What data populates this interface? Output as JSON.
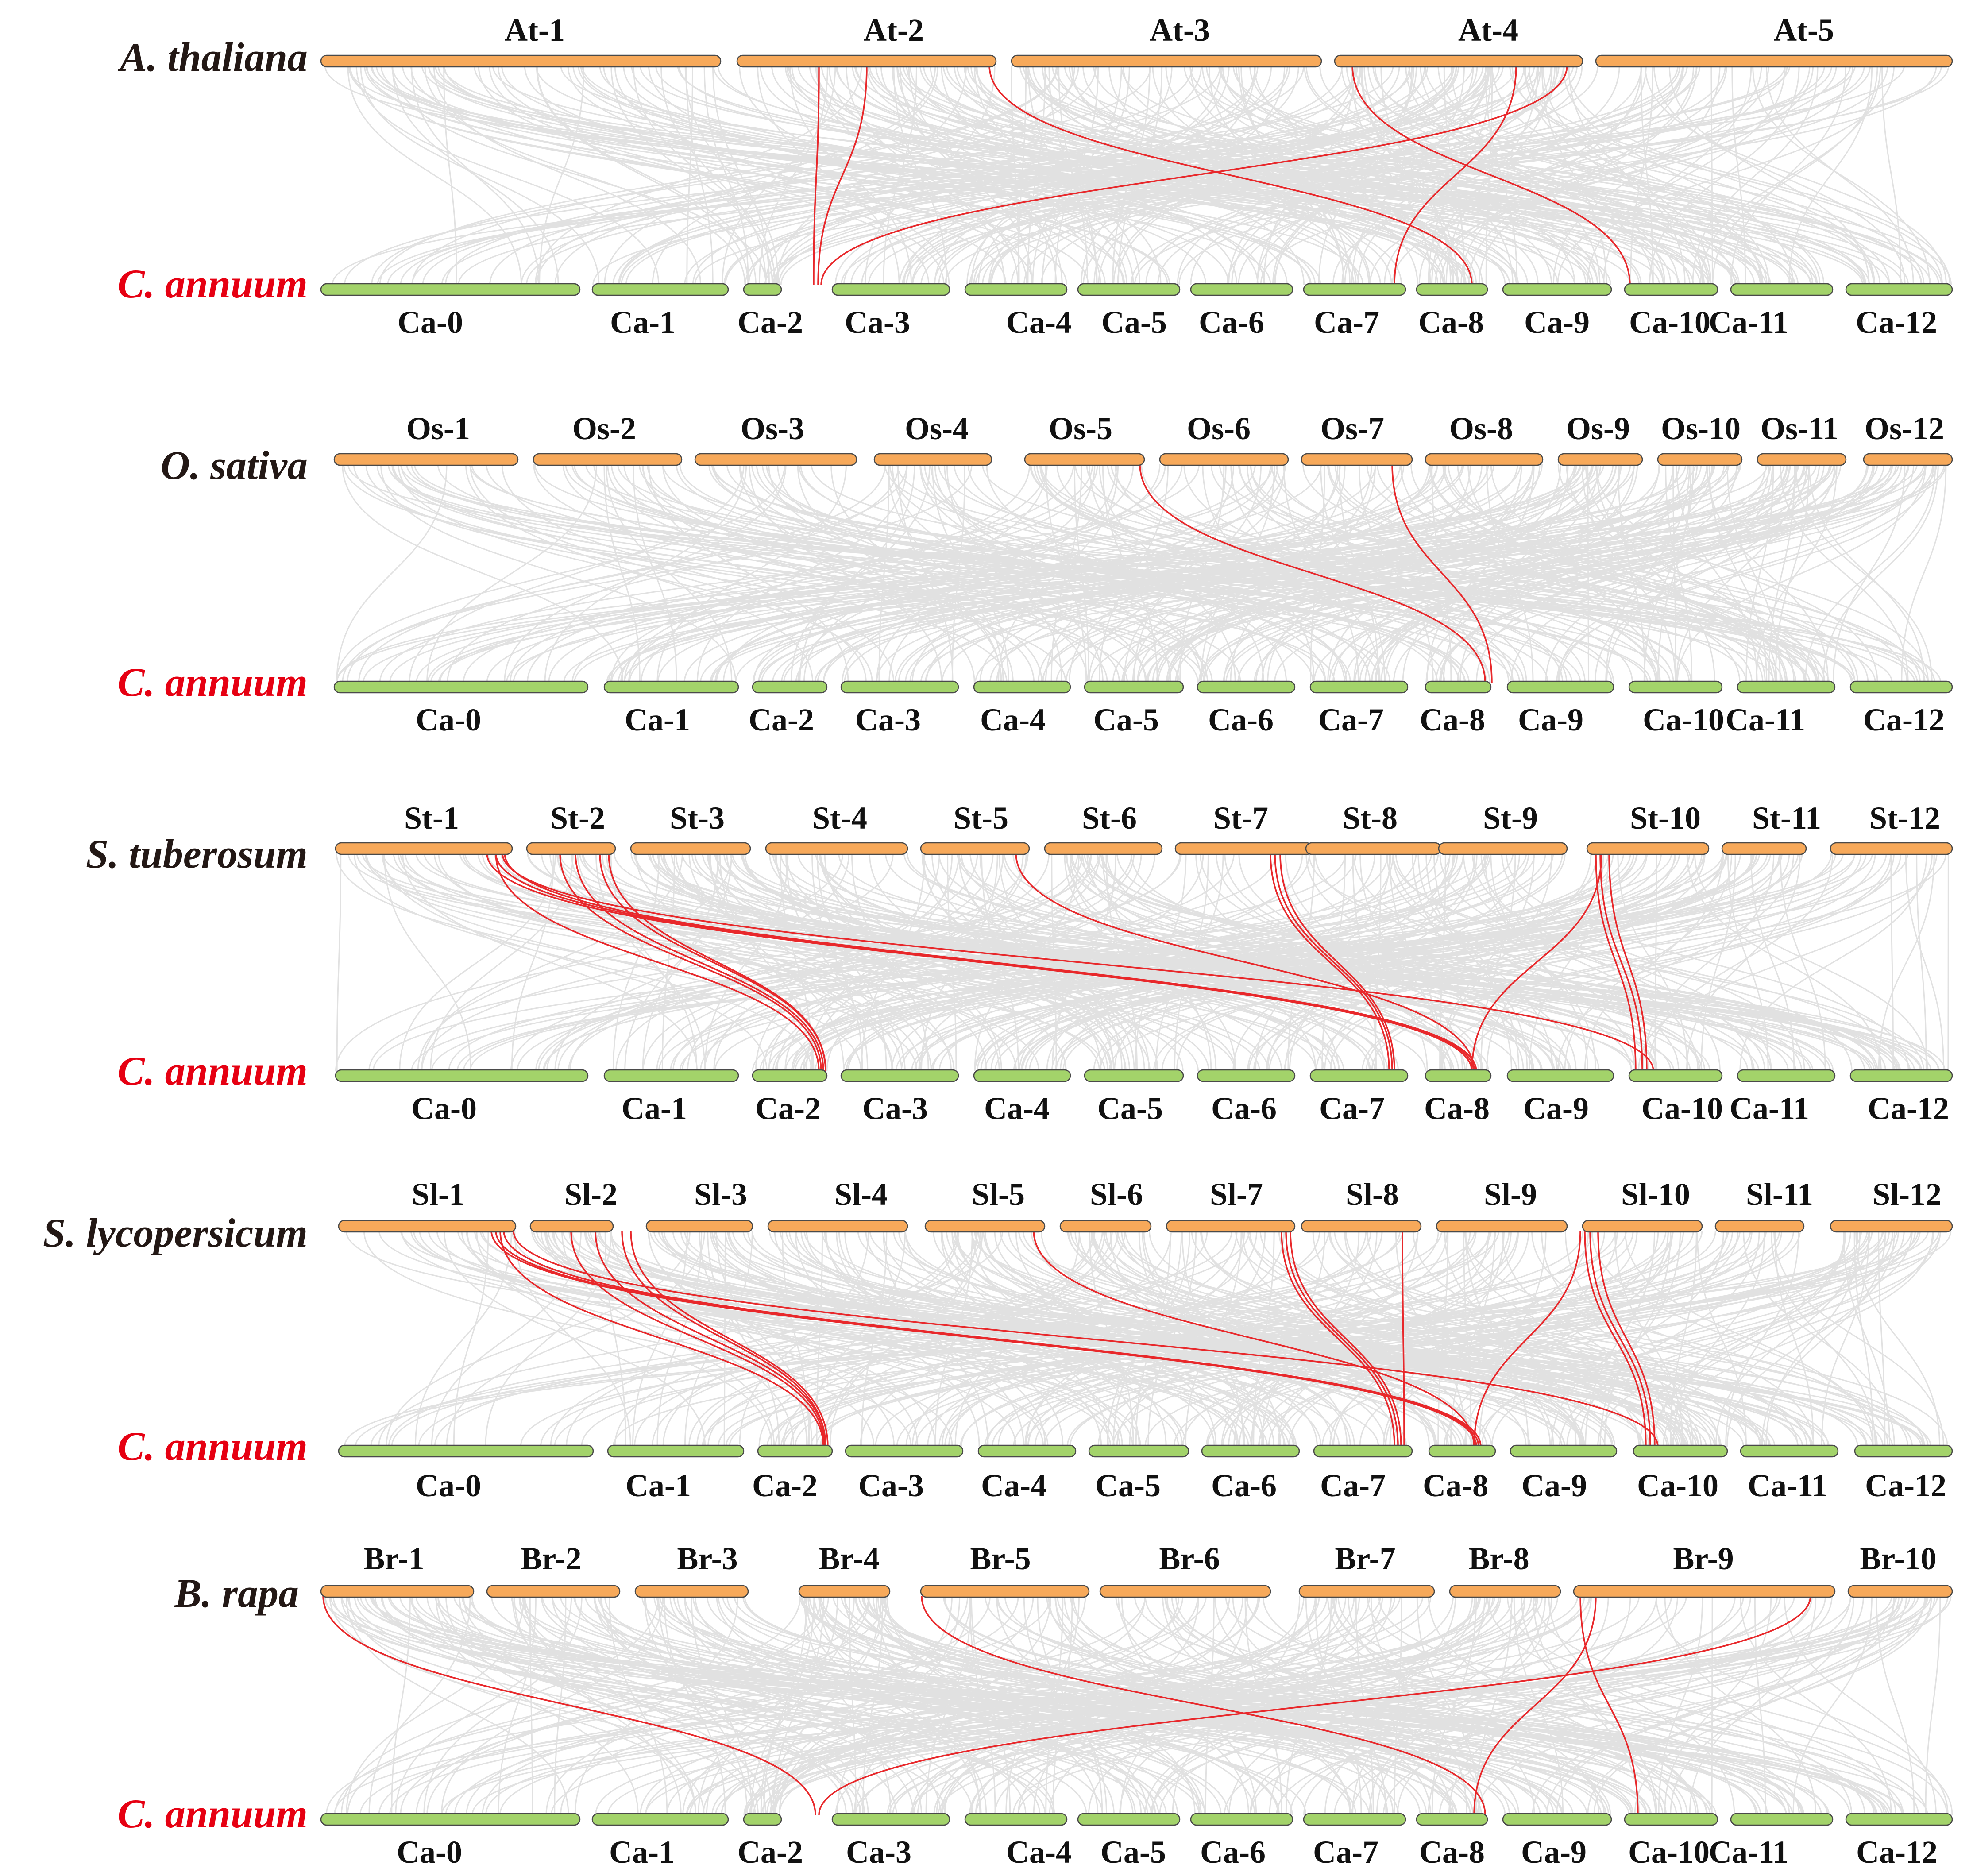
{
  "colors": {
    "reference_species_text": "#231815",
    "pepper_species_text": "#e60012",
    "reference_chrom_fill": "#f7a95a",
    "pepper_chrom_fill": "#a3d36a",
    "chrom_stroke": "#4a4a4a",
    "background_link": "#d9d9d9",
    "highlight_link": "#e8282b"
  },
  "panels": [
    {
      "species": "A.  thaliana",
      "target_species": "C.  annuum",
      "top_chromosomes": [
        "At-1",
        "At-2",
        "At-3",
        "At-4",
        "At-5"
      ],
      "bottom_chromosomes": [
        "Ca-0",
        "Ca-1",
        "Ca-2",
        "Ca-3",
        "Ca-4",
        "Ca-5",
        "Ca-6",
        "Ca-7",
        "Ca-8",
        "Ca-9",
        "Ca-10",
        "Ca-11",
        "Ca-12"
      ]
    },
    {
      "species": "O.  sativa",
      "target_species": "C.  annuum",
      "top_chromosomes": [
        "Os-1",
        "Os-2",
        "Os-3",
        "Os-4",
        "Os-5",
        "Os-6",
        "Os-7",
        "Os-8",
        "Os-9",
        "Os-10",
        "Os-11",
        "Os-12"
      ],
      "bottom_chromosomes": [
        "Ca-0",
        "Ca-1",
        "Ca-2",
        "Ca-3",
        "Ca-4",
        "Ca-5",
        "Ca-6",
        "Ca-7",
        "Ca-8",
        "Ca-9",
        "Ca-10",
        "Ca-11",
        "Ca-12"
      ]
    },
    {
      "species": "S. tuberosum",
      "target_species": "C.  annuum",
      "top_chromosomes": [
        "St-1",
        "St-2",
        "St-3",
        "St-4",
        "St-5",
        "St-6",
        "St-7",
        "St-8",
        "St-9",
        "St-10",
        "St-11",
        "St-12"
      ],
      "bottom_chromosomes": [
        "Ca-0",
        "Ca-1",
        "Ca-2",
        "Ca-3",
        "Ca-4",
        "Ca-5",
        "Ca-6",
        "Ca-7",
        "Ca-8",
        "Ca-9",
        "Ca-10",
        "Ca-11",
        "Ca-12"
      ]
    },
    {
      "species": "S. lycopersicum",
      "target_species": "C.  annuum",
      "top_chromosomes": [
        "Sl-1",
        "Sl-2",
        "Sl-3",
        "Sl-4",
        "Sl-5",
        "Sl-6",
        "Sl-7",
        "Sl-8",
        "Sl-9",
        "Sl-10",
        "Sl-11",
        "Sl-12"
      ],
      "bottom_chromosomes": [
        "Ca-0",
        "Ca-1",
        "Ca-2",
        "Ca-3",
        "Ca-4",
        "Ca-5",
        "Ca-6",
        "Ca-7",
        "Ca-8",
        "Ca-9",
        "Ca-10",
        "Ca-11",
        "Ca-12"
      ]
    },
    {
      "species": "B. rapa",
      "target_species": "C.  annuum",
      "top_chromosomes": [
        "Br-1",
        "Br-2",
        "Br-3",
        "Br-4",
        "Br-5",
        "Br-6",
        "Br-7",
        "Br-8",
        "Br-9",
        "Br-10"
      ],
      "bottom_chromosomes": [
        "Ca-0",
        "Ca-1",
        "Ca-2",
        "Ca-3",
        "Ca-4",
        "Ca-5",
        "Ca-6",
        "Ca-7",
        "Ca-8",
        "Ca-9",
        "Ca-10",
        "Ca-11",
        "Ca-12"
      ]
    }
  ]
}
